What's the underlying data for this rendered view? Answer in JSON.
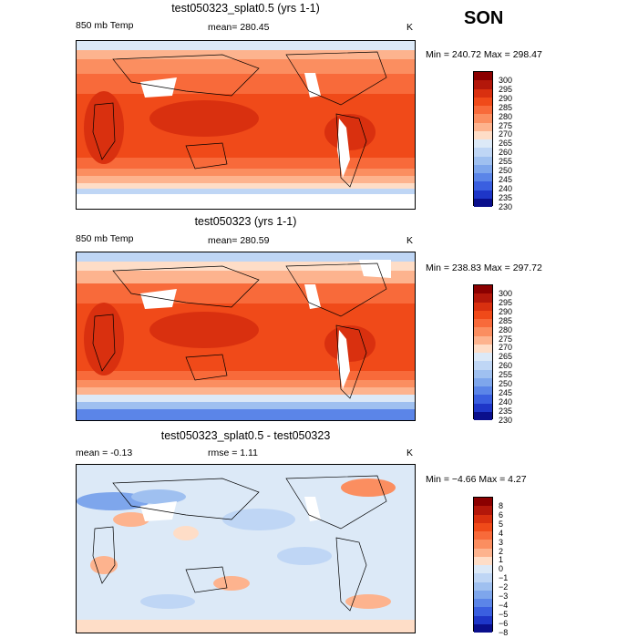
{
  "season": "SON",
  "panels": [
    {
      "title": "test050323_splat0.5 (yrs 1-1)",
      "left_label": "850 mb Temp",
      "mean_label": "mean= 280.45",
      "unit": "K",
      "minmax": "Min = 240.72 Max = 298.47",
      "levels": [
        "300",
        "295",
        "290",
        "285",
        "280",
        "275",
        "270",
        "265",
        "260",
        "255",
        "250",
        "245",
        "240",
        "235",
        "230"
      ],
      "colors": [
        "#8b0000",
        "#b3170a",
        "#d9300f",
        "#f04a19",
        "#f86a3a",
        "#fb8e60",
        "#fdb38e",
        "#feddc7",
        "#dce9f7",
        "#bfd6f5",
        "#9fc0f0",
        "#7ea6ec",
        "#5b85e8",
        "#3a5fe0",
        "#1e36c8",
        "#0a0f8c"
      ]
    },
    {
      "title": "test050323 (yrs 1-1)",
      "left_label": "850 mb Temp",
      "mean_label": "mean= 280.59",
      "unit": "K",
      "minmax": "Min = 238.83 Max = 297.72",
      "levels": [
        "300",
        "295",
        "290",
        "285",
        "280",
        "275",
        "270",
        "265",
        "260",
        "255",
        "250",
        "245",
        "240",
        "235",
        "230"
      ],
      "colors": [
        "#8b0000",
        "#b3170a",
        "#d9300f",
        "#f04a19",
        "#f86a3a",
        "#fb8e60",
        "#fdb38e",
        "#feddc7",
        "#dce9f7",
        "#bfd6f5",
        "#9fc0f0",
        "#7ea6ec",
        "#5b85e8",
        "#3a5fe0",
        "#1e36c8",
        "#0a0f8c"
      ]
    },
    {
      "title": "test050323_splat0.5 - test050323",
      "left_label": "mean =    -0.13",
      "mean_label": "rmse =     1.11",
      "unit": "K",
      "minmax": "Min =  −4.66 Max =    4.27",
      "levels": [
        "8",
        "6",
        "5",
        "4",
        "3",
        "2",
        "1",
        "0",
        "−1",
        "−2",
        "−3",
        "−4",
        "−5",
        "−6",
        "−8"
      ],
      "colors": [
        "#8b0000",
        "#b3170a",
        "#d9300f",
        "#f04a19",
        "#f86a3a",
        "#fb8e60",
        "#fdb38e",
        "#feddc7",
        "#dce9f7",
        "#bfd6f5",
        "#9fc0f0",
        "#7ea6ec",
        "#5b85e8",
        "#3a5fe0",
        "#1e36c8",
        "#0a0f8c"
      ]
    }
  ]
}
